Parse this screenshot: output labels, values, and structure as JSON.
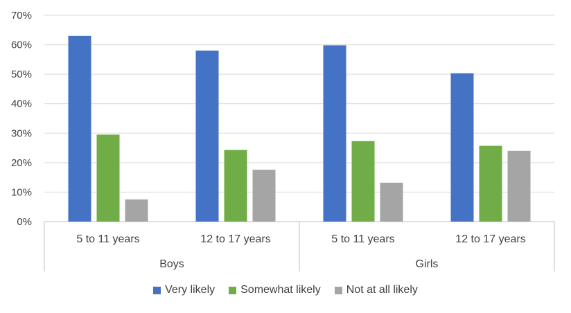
{
  "chart_data": {
    "type": "bar",
    "y_axis": {
      "min": 0,
      "max": 0.7,
      "step": 0.1,
      "tick_labels": [
        "0%",
        "10%",
        "20%",
        "30%",
        "40%",
        "50%",
        "60%",
        "70%"
      ],
      "gridlines": true
    },
    "groups": [
      {
        "label": "Boys",
        "categories": [
          "5 to 11 years",
          "12 to 17 years"
        ]
      },
      {
        "label": "Girls",
        "categories": [
          "5 to 11 years",
          "12 to 17 years"
        ]
      }
    ],
    "categories": [
      "5 to 11 years",
      "12 to 17 years",
      "5 to 11 years",
      "12 to 17 years"
    ],
    "series": [
      {
        "name": "Very likely",
        "color": "#4472C4",
        "values": [
          0.63,
          0.58,
          0.598,
          0.503
        ]
      },
      {
        "name": "Somewhat likely",
        "color": "#70AD47",
        "values": [
          0.295,
          0.243,
          0.273,
          0.257
        ]
      },
      {
        "name": "Not at all likely",
        "color": "#A5A5A5",
        "values": [
          0.075,
          0.176,
          0.132,
          0.24
        ]
      }
    ],
    "legend_position": "bottom"
  }
}
